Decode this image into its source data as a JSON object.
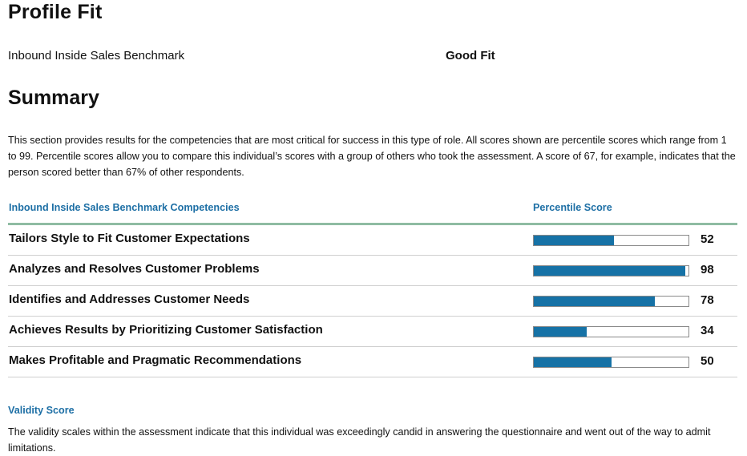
{
  "header": {
    "title": "Profile Fit",
    "benchmark_name": "Inbound Inside Sales Benchmark",
    "fit_label": "Good Fit"
  },
  "summary": {
    "heading": "Summary",
    "intro": "This section provides results for the competencies that are most critical for success in this type of role. All scores shown are percentile scores which range from 1 to 99. Percentile scores allow you to compare this individual’s scores with a group of others who took the assessment. A score of 67, for example, indicates that the person scored better than 67% of other respondents."
  },
  "table": {
    "competencies_header": "Inbound Inside Sales Benchmark Competencies",
    "score_header": "Percentile Score",
    "bar_color": "#1672a6",
    "header_rule_color": "#8fbca3",
    "rows": [
      {
        "name": "Tailors Style to Fit Customer Expectations",
        "score": 52
      },
      {
        "name": "Analyzes and Resolves Customer Problems",
        "score": 98
      },
      {
        "name": "Identifies and Addresses Customer Needs",
        "score": 78
      },
      {
        "name": "Achieves Results by Prioritizing Customer Satisfaction",
        "score": 34
      },
      {
        "name": "Makes Profitable and Pragmatic Recommendations",
        "score": 50
      }
    ]
  },
  "validity": {
    "title": "Validity Score",
    "text": "The validity scales within the assessment indicate that this individual was exceedingly candid in answering the questionnaire and went out of the way to admit limitations."
  }
}
